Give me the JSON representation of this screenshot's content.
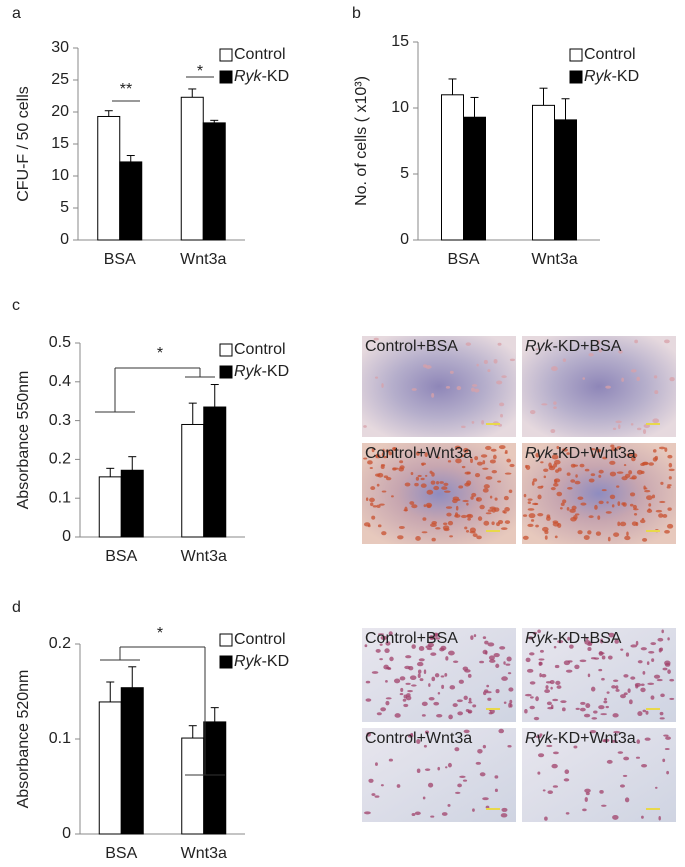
{
  "chart_data": [
    {
      "type": "bar",
      "panel": "a",
      "ylabel": "CFU-F / 50 cells",
      "categories": [
        "BSA",
        "Wnt3a"
      ],
      "series": [
        {
          "name": "Control",
          "color": "#ffffff",
          "values": [
            19.3,
            22.3
          ],
          "errors": [
            0.9,
            1.3
          ]
        },
        {
          "name": "Ryk-KD",
          "color": "#000000",
          "values": [
            12.2,
            18.3
          ],
          "errors": [
            1.0,
            0.4
          ]
        }
      ],
      "ylim": [
        0,
        30
      ],
      "yticks": [
        0,
        5,
        10,
        15,
        20,
        25,
        30
      ],
      "annotations": [
        "**",
        "*"
      ]
    },
    {
      "type": "bar",
      "panel": "b",
      "ylabel": "No. of cells ( x10³)",
      "categories": [
        "BSA",
        "Wnt3a"
      ],
      "series": [
        {
          "name": "Control",
          "color": "#ffffff",
          "values": [
            11.0,
            10.2
          ],
          "errors": [
            1.2,
            1.3
          ]
        },
        {
          "name": "Ryk-KD",
          "color": "#000000",
          "values": [
            9.3,
            9.1
          ],
          "errors": [
            1.5,
            1.6
          ]
        }
      ],
      "ylim": [
        0,
        15
      ],
      "yticks": [
        0,
        5,
        10,
        15
      ],
      "annotations": []
    },
    {
      "type": "bar",
      "panel": "c",
      "ylabel": "Absorbance 550nm",
      "categories": [
        "BSA",
        "Wnt3a"
      ],
      "series": [
        {
          "name": "Control",
          "color": "#ffffff",
          "values": [
            0.155,
            0.29
          ],
          "errors": [
            0.022,
            0.055
          ]
        },
        {
          "name": "Ryk-KD",
          "color": "#000000",
          "values": [
            0.172,
            0.335
          ],
          "errors": [
            0.035,
            0.058
          ]
        }
      ],
      "ylim": [
        0,
        0.5
      ],
      "yticks": [
        0,
        0.1,
        0.2,
        0.3,
        0.4,
        0.5
      ],
      "annotations": [
        "*"
      ],
      "image_labels": [
        "Control+BSA",
        "Ryk-KD+BSA",
        "Control+Wnt3a",
        "Ryk-KD+Wnt3a"
      ]
    },
    {
      "type": "bar",
      "panel": "d",
      "ylabel": "Absorbance 520nm",
      "categories": [
        "BSA",
        "Wnt3a"
      ],
      "series": [
        {
          "name": "Control",
          "color": "#ffffff",
          "values": [
            0.139,
            0.101
          ],
          "errors": [
            0.021,
            0.013
          ]
        },
        {
          "name": "Ryk-KD",
          "color": "#000000",
          "values": [
            0.154,
            0.118
          ],
          "errors": [
            0.022,
            0.015
          ]
        }
      ],
      "ylim": [
        0,
        0.2
      ],
      "yticks": [
        0,
        0.1,
        0.2
      ],
      "annotations": [
        "*"
      ],
      "image_labels": [
        "Control+BSA",
        "Ryk-KD+BSA",
        "Control+Wnt3a",
        "Ryk-KD+Wnt3a"
      ]
    }
  ]
}
